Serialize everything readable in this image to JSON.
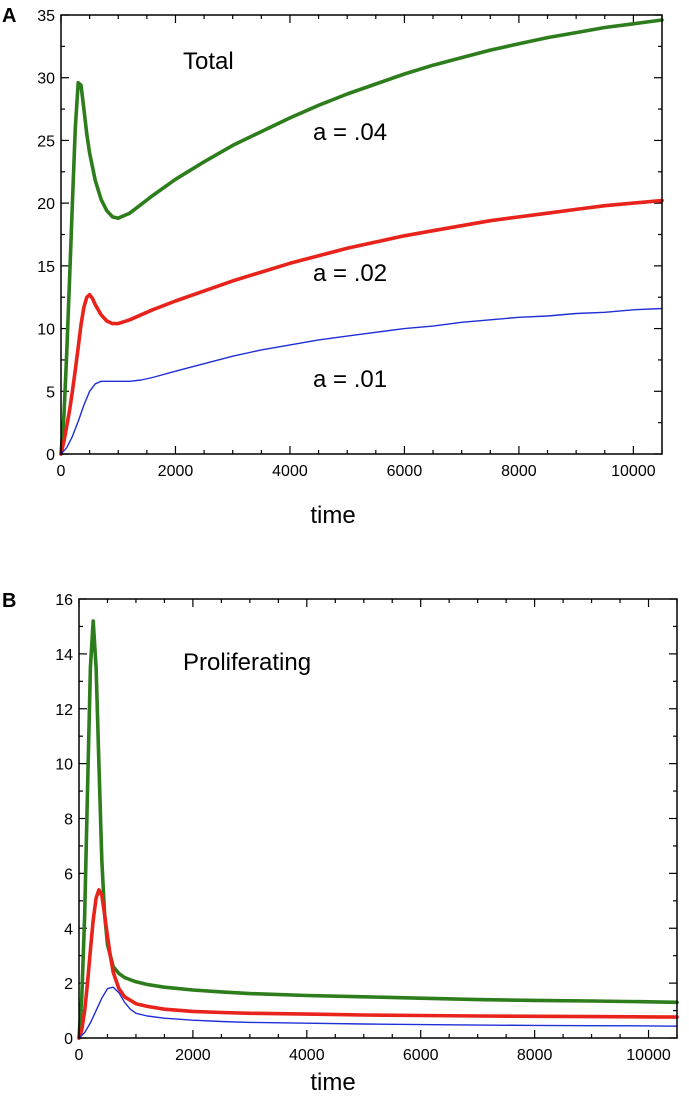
{
  "chart_data": [
    {
      "panel": "A",
      "type": "line",
      "title": "Total",
      "xlabel": "time",
      "ylabel": "",
      "xlim": [
        0,
        10500
      ],
      "ylim": [
        0,
        35
      ],
      "xticks": [
        0,
        2000,
        4000,
        6000,
        8000,
        10000
      ],
      "yticks": [
        0,
        5,
        10,
        15,
        20,
        25,
        30,
        35
      ],
      "grid": false,
      "series": [
        {
          "name": "a = .04",
          "color": "#2e7d1c",
          "x": [
            0,
            50,
            100,
            150,
            200,
            250,
            300,
            350,
            400,
            450,
            500,
            600,
            700,
            800,
            900,
            1000,
            1200,
            1400,
            1600,
            2000,
            2500,
            3000,
            3500,
            4000,
            4500,
            5000,
            5500,
            6000,
            6500,
            7000,
            7500,
            8000,
            8500,
            9000,
            9500,
            10000,
            10500
          ],
          "values": [
            0,
            3,
            8,
            14,
            20,
            26,
            29.6,
            29.4,
            27.5,
            25.5,
            24,
            21.8,
            20.3,
            19.4,
            18.9,
            18.8,
            19.2,
            19.9,
            20.6,
            21.9,
            23.3,
            24.6,
            25.7,
            26.8,
            27.8,
            28.7,
            29.5,
            30.3,
            31,
            31.6,
            32.2,
            32.7,
            33.2,
            33.6,
            34,
            34.3,
            34.6
          ]
        },
        {
          "name": "a = .02",
          "color": "#e8231b",
          "x": [
            0,
            50,
            100,
            150,
            200,
            250,
            300,
            350,
            400,
            450,
            500,
            550,
            600,
            700,
            800,
            900,
            1000,
            1200,
            1400,
            1600,
            2000,
            2500,
            3000,
            3500,
            4000,
            4500,
            5000,
            5500,
            6000,
            6500,
            7000,
            7500,
            8000,
            8500,
            9000,
            9500,
            10000,
            10500
          ],
          "values": [
            0,
            1,
            2.2,
            3.5,
            5,
            6.7,
            8.5,
            10.3,
            11.7,
            12.5,
            12.7,
            12.4,
            11.9,
            11.1,
            10.6,
            10.4,
            10.4,
            10.7,
            11.1,
            11.5,
            12.2,
            13,
            13.8,
            14.5,
            15.2,
            15.8,
            16.4,
            16.9,
            17.4,
            17.8,
            18.2,
            18.6,
            18.9,
            19.2,
            19.5,
            19.8,
            20,
            20.2
          ]
        },
        {
          "name": "a = .01",
          "color": "#1f2fd6",
          "x": [
            0,
            100,
            200,
            300,
            400,
            500,
            600,
            700,
            800,
            1000,
            1200,
            1400,
            1600,
            2000,
            2500,
            3000,
            3500,
            4000,
            4500,
            5000,
            5500,
            6000,
            6500,
            7000,
            7500,
            8000,
            8500,
            9000,
            9500,
            10000,
            10500
          ],
          "values": [
            0,
            0.5,
            1.4,
            2.6,
            3.9,
            5,
            5.6,
            5.8,
            5.8,
            5.8,
            5.8,
            5.9,
            6.1,
            6.6,
            7.2,
            7.8,
            8.3,
            8.7,
            9.1,
            9.4,
            9.7,
            10,
            10.2,
            10.5,
            10.7,
            10.9,
            11,
            11.2,
            11.3,
            11.5,
            11.6
          ]
        }
      ],
      "annotations": [
        "a = .04",
        "a = .02",
        "a = .01"
      ]
    },
    {
      "panel": "B",
      "type": "line",
      "title": "Proliferating",
      "xlabel": "time",
      "ylabel": "",
      "xlim": [
        0,
        10500
      ],
      "ylim": [
        0,
        16
      ],
      "xticks": [
        0,
        2000,
        4000,
        6000,
        8000,
        10000
      ],
      "yticks": [
        0,
        2,
        4,
        6,
        8,
        10,
        12,
        14,
        16
      ],
      "grid": false,
      "series": [
        {
          "name": "a = .04",
          "color": "#2e7d1c",
          "x": [
            0,
            50,
            100,
            150,
            200,
            250,
            300,
            350,
            400,
            450,
            500,
            600,
            700,
            800,
            1000,
            1200,
            1500,
            2000,
            2500,
            3000,
            4000,
            5000,
            6000,
            7000,
            8000,
            9000,
            10000,
            10500
          ],
          "values": [
            0,
            1.5,
            4.5,
            9,
            13.5,
            15.2,
            13.5,
            10,
            6.5,
            4.5,
            3.4,
            2.6,
            2.35,
            2.2,
            2.05,
            1.95,
            1.85,
            1.75,
            1.68,
            1.62,
            1.55,
            1.5,
            1.45,
            1.4,
            1.37,
            1.35,
            1.32,
            1.3
          ]
        },
        {
          "name": "a = .02",
          "color": "#e8231b",
          "x": [
            0,
            50,
            100,
            150,
            200,
            250,
            300,
            350,
            400,
            450,
            500,
            550,
            600,
            700,
            800,
            1000,
            1200,
            1500,
            2000,
            2500,
            3000,
            4000,
            5000,
            6000,
            7000,
            8000,
            9000,
            10000,
            10500
          ],
          "values": [
            0,
            0.3,
            1,
            2,
            3.2,
            4.3,
            5.1,
            5.4,
            5.2,
            4.5,
            3.7,
            3,
            2.4,
            1.8,
            1.5,
            1.25,
            1.15,
            1.05,
            0.97,
            0.93,
            0.9,
            0.87,
            0.84,
            0.82,
            0.8,
            0.79,
            0.78,
            0.77,
            0.76
          ]
        },
        {
          "name": "a = .01",
          "color": "#1f2fd6",
          "x": [
            0,
            100,
            200,
            300,
            400,
            500,
            600,
            700,
            800,
            900,
            1000,
            1200,
            1500,
            2000,
            2500,
            3000,
            4000,
            5000,
            6000,
            7000,
            8000,
            9000,
            10000,
            10500
          ],
          "values": [
            0,
            0.2,
            0.55,
            1,
            1.45,
            1.8,
            1.85,
            1.65,
            1.3,
            1.05,
            0.9,
            0.8,
            0.72,
            0.65,
            0.6,
            0.57,
            0.54,
            0.51,
            0.49,
            0.47,
            0.46,
            0.45,
            0.44,
            0.43
          ]
        }
      ],
      "annotations": []
    }
  ]
}
